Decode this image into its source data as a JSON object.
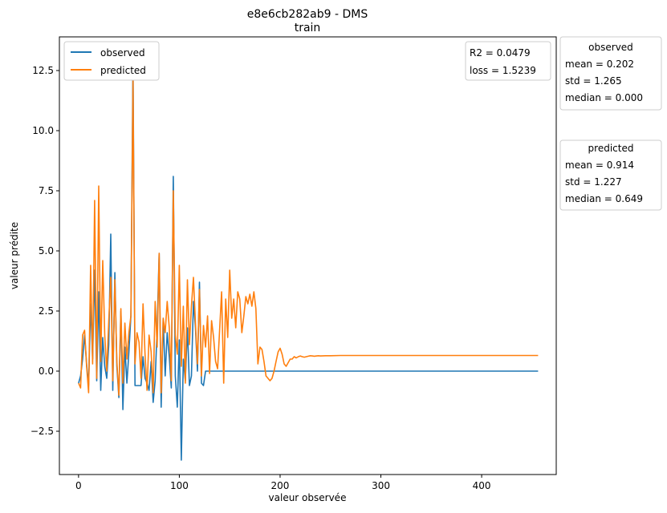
{
  "chart_data": {
    "type": "line",
    "title": "e8e6cb282ab9 - DMS",
    "subtitle": "train",
    "xlabel": "valeur observée",
    "ylabel": "valeur prédite",
    "xlim": [
      -19,
      474
    ],
    "ylim": [
      -4.3,
      13.9
    ],
    "xticks": [
      0,
      100,
      200,
      300,
      400
    ],
    "xtick_labels": [
      "0",
      "100",
      "200",
      "300",
      "400"
    ],
    "yticks": [
      -2.5,
      0.0,
      2.5,
      5.0,
      7.5,
      10.0,
      12.5
    ],
    "ytick_labels": [
      "−2.5",
      "0.0",
      "2.5",
      "5.0",
      "7.5",
      "10.0",
      "12.5"
    ],
    "grid": false,
    "legend_position": "top-left",
    "colors": {
      "observed": "#1f77b4",
      "predicted": "#ff7f0e"
    },
    "series": [
      {
        "name": "observed",
        "x": [
          0,
          2,
          4,
          6,
          8,
          10,
          12,
          14,
          16,
          18,
          20,
          22,
          24,
          26,
          28,
          30,
          32,
          34,
          36,
          38,
          40,
          42,
          44,
          46,
          48,
          50,
          52,
          54,
          56,
          58,
          60,
          62,
          64,
          66,
          68,
          70,
          72,
          74,
          76,
          78,
          80,
          82,
          84,
          86,
          88,
          90,
          92,
          94,
          96,
          98,
          100,
          102,
          104,
          106,
          108,
          110,
          112,
          114,
          116,
          118,
          120,
          122,
          124,
          126,
          128,
          130,
          132,
          134,
          136,
          138,
          140,
          142,
          144,
          146,
          148,
          150,
          152,
          154,
          156,
          158,
          160,
          162,
          164,
          166,
          168,
          170,
          172,
          174,
          176,
          178,
          180,
          182,
          184,
          186,
          188,
          190,
          192,
          194,
          196,
          198,
          200,
          202,
          204,
          206,
          456
        ],
        "y": [
          -0.5,
          -0.2,
          0.5,
          1.5,
          0.3,
          -0.6,
          2.8,
          0.5,
          4.2,
          -0.4,
          3.3,
          -0.8,
          1.4,
          0.2,
          -0.3,
          1.1,
          5.7,
          -0.8,
          4.1,
          0.2,
          -1.1,
          2.5,
          -1.6,
          1.0,
          -0.5,
          0.8,
          2.3,
          13.0,
          -0.6,
          -0.6,
          -0.6,
          -0.6,
          0.6,
          -0.3,
          -0.5,
          -0.8,
          0.4,
          -1.3,
          -0.4,
          1.8,
          4.9,
          -1.5,
          2.2,
          -0.2,
          1.6,
          0.6,
          -0.7,
          8.1,
          -0.2,
          -1.5,
          1.3,
          -3.7,
          0.5,
          -0.4,
          1.8,
          -0.6,
          -0.2,
          2.9,
          1.8,
          0,
          3.7,
          -0.5,
          -0.6,
          0,
          0,
          0,
          0,
          0,
          0,
          0,
          0,
          0,
          0,
          0,
          0,
          0,
          0,
          0,
          0,
          0,
          0,
          0,
          0,
          0,
          0,
          0,
          0,
          0,
          0,
          0,
          0,
          0,
          0,
          0,
          0,
          0,
          0,
          0,
          0,
          0,
          0,
          0,
          0,
          0,
          0
        ]
      },
      {
        "name": "predicted",
        "x": [
          0,
          2,
          4,
          6,
          8,
          10,
          12,
          14,
          16,
          18,
          20,
          22,
          24,
          26,
          28,
          30,
          32,
          34,
          36,
          38,
          40,
          42,
          44,
          46,
          48,
          50,
          52,
          54,
          56,
          58,
          60,
          62,
          64,
          66,
          68,
          70,
          72,
          74,
          76,
          78,
          80,
          82,
          84,
          86,
          88,
          90,
          92,
          94,
          96,
          98,
          100,
          102,
          104,
          106,
          108,
          110,
          112,
          114,
          116,
          118,
          120,
          122,
          124,
          126,
          128,
          130,
          132,
          134,
          136,
          138,
          140,
          142,
          144,
          146,
          148,
          150,
          152,
          154,
          156,
          158,
          160,
          162,
          164,
          166,
          168,
          170,
          172,
          174,
          176,
          178,
          180,
          182,
          184,
          186,
          188,
          190,
          192,
          194,
          196,
          198,
          200,
          202,
          204,
          206,
          208,
          210,
          212,
          214,
          216,
          218,
          220,
          222,
          224,
          226,
          228,
          230,
          232,
          234,
          236,
          238,
          240,
          245,
          250,
          260,
          280,
          300,
          350,
          400,
          456
        ],
        "y": [
          -0.5,
          -0.7,
          1.5,
          1.7,
          0.2,
          -0.9,
          4.4,
          0.3,
          7.1,
          -0.3,
          7.7,
          0.4,
          4.6,
          1.5,
          0.0,
          2.1,
          3.9,
          -0.4,
          3.8,
          0.4,
          -1.0,
          2.6,
          -0.5,
          2.0,
          0.5,
          1.6,
          2.3,
          12.1,
          0.3,
          1.6,
          1.2,
          -0.3,
          2.8,
          0.7,
          -0.8,
          1.5,
          0.8,
          -0.9,
          2.9,
          1.0,
          4.9,
          -0.9,
          2.2,
          1.6,
          2.9,
          1.8,
          -0.4,
          7.5,
          1.5,
          0.7,
          4.4,
          0.2,
          2.7,
          -0.5,
          3.8,
          1.1,
          2.7,
          3.9,
          2.0,
          0.3,
          3.4,
          -0.2,
          1.9,
          1.0,
          2.3,
          -0.1,
          2.1,
          1.4,
          0.4,
          0.1,
          1.7,
          3.3,
          -0.5,
          3.0,
          1.4,
          4.2,
          2.2,
          3.0,
          1.8,
          3.3,
          3.0,
          1.6,
          2.3,
          3.1,
          2.8,
          3.2,
          2.7,
          3.3,
          2.6,
          0.3,
          1.0,
          0.9,
          0.4,
          -0.2,
          -0.3,
          -0.4,
          -0.3,
          0.0,
          0.4,
          0.8,
          0.95,
          0.7,
          0.3,
          0.2,
          0.35,
          0.5,
          0.5,
          0.6,
          0.55,
          0.6,
          0.63,
          0.6,
          0.58,
          0.6,
          0.62,
          0.64,
          0.63,
          0.62,
          0.63,
          0.64,
          0.63,
          0.64,
          0.64,
          0.65,
          0.65,
          0.65,
          0.65,
          0.65,
          0.65
        ]
      }
    ],
    "annotation": {
      "lines": [
        "R2 = 0.0479",
        "loss = 1.5239"
      ],
      "position": "top-right"
    },
    "stat_boxes": [
      {
        "title": "observed",
        "lines": [
          "mean = 0.202",
          "std = 1.265",
          "median = 0.000"
        ]
      },
      {
        "title": "predicted",
        "lines": [
          "mean = 0.914",
          "std = 1.227",
          "median = 0.649"
        ]
      }
    ]
  }
}
